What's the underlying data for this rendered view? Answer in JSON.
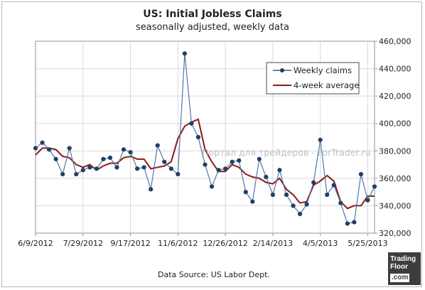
{
  "chart_data": {
    "type": "line",
    "title": "US: Initial Jobless Claims",
    "subtitle": "seasonally adjusted, weekly data",
    "ylim": [
      320000,
      460000
    ],
    "y_ticks": [
      "320,000",
      "340,000",
      "360,000",
      "380,000",
      "400,000",
      "420,000",
      "440,000",
      "460,000"
    ],
    "y_tick_values": [
      320000,
      340000,
      360000,
      380000,
      400000,
      420000,
      440000,
      460000
    ],
    "x_ticks": [
      "6/9/2012",
      "7/29/2012",
      "9/17/2012",
      "11/6/2012",
      "12/26/2012",
      "2/14/2013",
      "4/5/2013",
      "5/25/2013"
    ],
    "x_tick_weeks": [
      0,
      7,
      14,
      21,
      28,
      35,
      42,
      49
    ],
    "grid": true,
    "legend_position": "top-right",
    "series": [
      {
        "name": "Weekly claims",
        "color": "#1f3f66",
        "marker": "circle",
        "values": [
          382000,
          386000,
          381000,
          374000,
          363000,
          382000,
          363000,
          366000,
          368000,
          367000,
          374000,
          375000,
          368000,
          381000,
          379000,
          367000,
          368000,
          352000,
          384000,
          372000,
          367000,
          363000,
          451000,
          400000,
          390000,
          370000,
          354000,
          366000,
          367000,
          372000,
          373000,
          350000,
          343000,
          374000,
          361000,
          348000,
          366000,
          348000,
          340000,
          334000,
          341000,
          357000,
          388000,
          348000,
          355000,
          342000,
          327000,
          328000,
          363000,
          344000,
          354000
        ]
      },
      {
        "name": "4-week average",
        "color": "#8b1a1a",
        "values": [
          377000,
          382000,
          382000,
          381000,
          376000,
          375000,
          370000,
          368000,
          370000,
          366000,
          369000,
          371000,
          371000,
          375000,
          376000,
          374000,
          374000,
          367000,
          368000,
          369000,
          372000,
          389000,
          398000,
          401000,
          403000,
          381000,
          372000,
          365000,
          365000,
          370000,
          368000,
          363000,
          361000,
          360000,
          357000,
          356000,
          360000,
          352000,
          348000,
          342000,
          343000,
          355000,
          358000,
          362000,
          358000,
          343000,
          338000,
          340000,
          340000,
          347000,
          347000
        ]
      }
    ]
  },
  "watermark": "Портал для трейдеров - ForTrader.ru",
  "source": "Data Source: US Labor Dept.",
  "logo": {
    "line1": "Trading",
    "line2": "Floor",
    "line3": ".com"
  }
}
